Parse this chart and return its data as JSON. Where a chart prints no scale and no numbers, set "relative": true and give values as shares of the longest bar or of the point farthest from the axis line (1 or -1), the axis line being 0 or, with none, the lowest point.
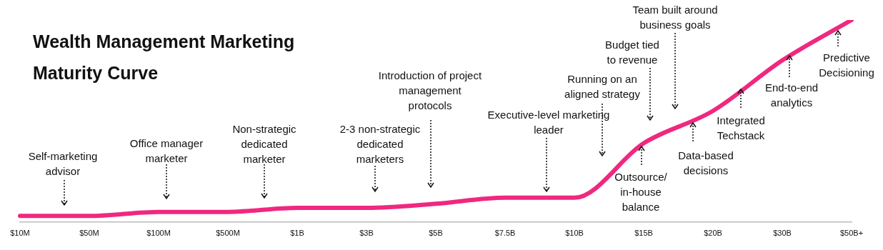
{
  "chart_data": {
    "type": "line",
    "title": "Wealth Management Marketing Maturity Curve",
    "relative": true,
    "categories": [
      "$10M",
      "$50M",
      "$100M",
      "$500M",
      "$1B",
      "$3B",
      "$5B",
      "$7.5B",
      "$10B",
      "$15B",
      "$20B",
      "$30B",
      "$50B+"
    ],
    "series": [
      {
        "color": "#f0287f",
        "values": [
          0.03,
          0.03,
          0.05,
          0.05,
          0.07,
          0.07,
          0.09,
          0.12,
          0.12,
          0.39,
          0.55,
          0.8,
          1
        ]
      }
    ],
    "marker": "none",
    "grid": false,
    "legend": false,
    "annotations": [
      "Self-marketing advisor",
      "Office manager marketer",
      "Non-strategic dedicated marketer",
      "2-3 non-strategic dedicated marketers",
      "Introduction of project management protocols",
      "Executive-level marketing leader",
      "Running on an aligned strategy",
      "Budget tied to revenue",
      "Team built around business goals",
      "Outsource/ in-house balance",
      "Data-based decisions",
      "Integrated Techstack",
      "End-to-end analytics",
      "Predictive Decisioning"
    ]
  }
}
